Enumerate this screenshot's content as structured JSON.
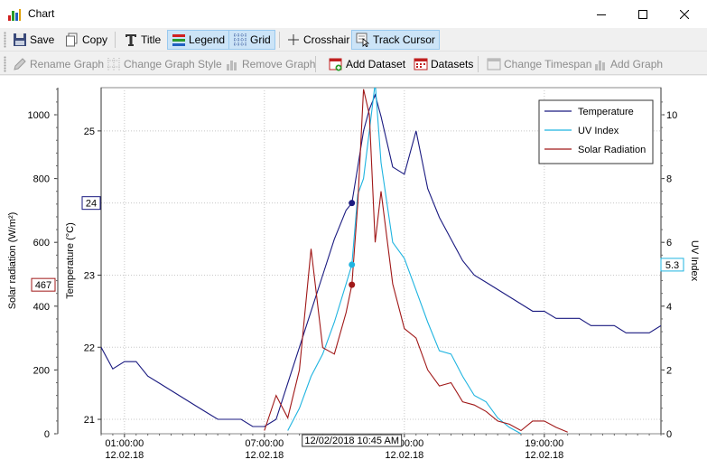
{
  "window": {
    "title": "Chart"
  },
  "toolbar1": {
    "save": "Save",
    "copy": "Copy",
    "title": "Title",
    "legend": "Legend",
    "grid": "Grid",
    "crosshair": "Crosshair",
    "track_cursor": "Track Cursor"
  },
  "toolbar2": {
    "rename_graph": "Rename Graph",
    "change_graph_style": "Change Graph Style",
    "remove_graph": "Remove Graph",
    "add_dataset": "Add Dataset",
    "datasets": "Datasets",
    "change_timespan": "Change Timespan",
    "add_graph": "Add Graph"
  },
  "colors": {
    "temperature": "#1a1a80",
    "uv": "#1fb4e0",
    "solar": "#a01818",
    "active_bg": "#cce4f7"
  },
  "chart_data": {
    "type": "line",
    "axes": {
      "x": {
        "ticks": [
          {
            "time": "01:00:00",
            "date": "12.02.18"
          },
          {
            "time": "07:00:00",
            "date": "12.02.18"
          },
          {
            "time": "13:00:00",
            "date": "12.02.18"
          },
          {
            "time": "19:00:00",
            "date": "12.02.18"
          }
        ],
        "range": [
          "00:00",
          "24:00"
        ]
      },
      "temperature": {
        "label": "Temperature (°C)",
        "ticks": [
          21,
          22,
          23,
          24,
          25
        ],
        "range": [
          20.8,
          25.6
        ],
        "side": "left-inner"
      },
      "solar": {
        "label": "Solar radiation (W/m²)",
        "ticks": [
          0,
          200,
          400,
          600,
          800,
          1000
        ],
        "range": [
          0,
          1085
        ],
        "side": "left-outer"
      },
      "uv": {
        "label": "UV Index",
        "ticks": [
          0,
          2,
          4,
          6,
          8,
          10
        ],
        "range": [
          0,
          10.85
        ],
        "side": "right"
      }
    },
    "cursor": {
      "time_label": "12/02/2018 10:45 AM",
      "temperature": "24",
      "solar": "467",
      "uv": "5.3"
    },
    "legend": {
      "placement": "top-right",
      "entries": [
        "Temperature",
        "UV Index",
        "Solar Radiation"
      ]
    },
    "grid": true,
    "series": [
      {
        "name": "Temperature",
        "color": "#1a1a80",
        "axis": "temperature",
        "x": [
          0,
          0.5,
          1,
          1.5,
          2,
          2.5,
          3,
          3.5,
          4,
          4.5,
          5,
          5.5,
          6,
          6.5,
          7,
          7.5,
          8,
          8.5,
          9,
          9.5,
          10,
          10.5,
          10.75,
          11,
          11.25,
          11.5,
          11.75,
          12,
          12.5,
          13,
          13.5,
          14,
          14.5,
          15,
          15.5,
          16,
          16.5,
          17,
          17.5,
          18,
          18.5,
          19,
          19.5,
          20,
          20.5,
          21,
          21.5,
          22,
          22.5,
          23,
          23.5,
          24
        ],
        "y": [
          22.0,
          21.7,
          21.8,
          21.8,
          21.6,
          21.5,
          21.4,
          21.3,
          21.2,
          21.1,
          21.0,
          21.0,
          21.0,
          20.9,
          20.9,
          21.0,
          21.5,
          22.0,
          22.5,
          23.0,
          23.5,
          23.9,
          24.0,
          24.5,
          25.0,
          25.3,
          25.5,
          25.2,
          24.5,
          24.4,
          25.0,
          24.2,
          23.8,
          23.5,
          23.2,
          23.0,
          22.9,
          22.8,
          22.7,
          22.6,
          22.5,
          22.5,
          22.4,
          22.4,
          22.4,
          22.3,
          22.3,
          22.3,
          22.2,
          22.2,
          22.2,
          22.3
        ]
      },
      {
        "name": "UV Index",
        "color": "#1fb4e0",
        "axis": "uv",
        "x": [
          8,
          8.5,
          9,
          9.5,
          10,
          10.5,
          10.75,
          11,
          11.25,
          11.5,
          11.75,
          12,
          12.5,
          13,
          13.5,
          14,
          14.5,
          15,
          15.5,
          16,
          16.5,
          17,
          17.5,
          18
        ],
        "y": [
          0.1,
          0.8,
          1.8,
          2.5,
          3.5,
          4.7,
          5.3,
          7.5,
          8.0,
          9.5,
          11.0,
          8.5,
          6.0,
          5.5,
          4.5,
          3.5,
          2.6,
          2.5,
          1.8,
          1.2,
          1.0,
          0.5,
          0.2,
          0.0
        ]
      },
      {
        "name": "Solar Radiation",
        "color": "#a01818",
        "axis": "solar",
        "x": [
          7,
          7.5,
          8,
          8.5,
          9,
          9.5,
          10,
          10.5,
          10.75,
          11,
          11.25,
          11.5,
          11.75,
          12,
          12.5,
          13,
          13.5,
          14,
          14.5,
          15,
          15.5,
          16,
          16.5,
          17,
          17.5,
          18,
          18.5,
          19,
          19.5,
          20
        ],
        "y": [
          10,
          120,
          50,
          200,
          580,
          270,
          250,
          380,
          467,
          720,
          1080,
          1000,
          600,
          760,
          470,
          330,
          300,
          200,
          150,
          160,
          100,
          90,
          70,
          40,
          30,
          10,
          40,
          40,
          20,
          5
        ]
      }
    ]
  }
}
